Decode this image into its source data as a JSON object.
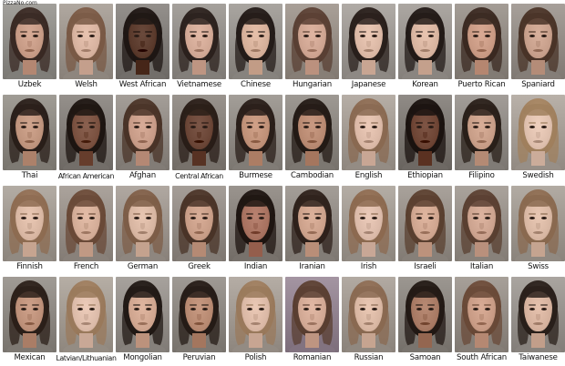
{
  "watermark": "PizzaNo.com",
  "rows": [
    [
      {
        "label": "Uzbek",
        "skin": "#c79b86",
        "hair": "#3a2a24",
        "bg": "#8c8a85"
      },
      {
        "label": "Welsh",
        "skin": "#d8b3a0",
        "hair": "#7a5a46",
        "bg": "#9a928a"
      },
      {
        "label": "West African",
        "skin": "#5a3a2c",
        "hair": "#1f1714",
        "bg": "#7e7a76"
      },
      {
        "label": "Vietnamese",
        "skin": "#d2a996",
        "hair": "#2c221e",
        "bg": "#8f8b86"
      },
      {
        "label": "Chinese",
        "skin": "#d6b09a",
        "hair": "#241c19",
        "bg": "#938f8a"
      },
      {
        "label": "Hungarian",
        "skin": "#cfa592",
        "hair": "#5a4034",
        "bg": "#938a82"
      },
      {
        "label": "Japanese",
        "skin": "#dcb9a6",
        "hair": "#2a201c",
        "bg": "#9a9590"
      },
      {
        "label": "Korean",
        "skin": "#d8b4a0",
        "hair": "#231b18",
        "bg": "#96918c"
      },
      {
        "label": "Puerto Rican",
        "skin": "#c99a84",
        "hair": "#3b2a22",
        "bg": "#8e8780"
      },
      {
        "label": "Spaniard",
        "skin": "#c8a08c",
        "hair": "#4a3428",
        "bg": "#918a84"
      }
    ],
    [
      {
        "label": "Thai",
        "skin": "#c0957e",
        "hair": "#2a1f1a",
        "bg": "#8a867f"
      },
      {
        "label": "African American",
        "skin": "#7a5140",
        "hair": "#1e1612",
        "bg": "#7f7a75"
      },
      {
        "label": "Afghan",
        "skin": "#c89c88",
        "hair": "#4a3428",
        "bg": "#8e8882"
      },
      {
        "label": "Central African",
        "skin": "#6b4637",
        "hair": "#2a1e18",
        "bg": "#837d77"
      },
      {
        "label": "Burmese",
        "skin": "#c09178",
        "hair": "#2a1f1a",
        "bg": "#8d8882"
      },
      {
        "label": "Cambodian",
        "skin": "#b98a72",
        "hair": "#241b16",
        "bg": "#88837d"
      },
      {
        "label": "English",
        "skin": "#dcbaa8",
        "hair": "#8a6a52",
        "bg": "#a09890"
      },
      {
        "label": "Ethiopian",
        "skin": "#6e4535",
        "hair": "#1b1310",
        "bg": "#7a7570"
      },
      {
        "label": "Filipino",
        "skin": "#c89e88",
        "hair": "#2a201a",
        "bg": "#8c8782"
      },
      {
        "label": "Swedish",
        "skin": "#dfc0ae",
        "hair": "#a0805e",
        "bg": "#a39b93"
      }
    ],
    [
      {
        "label": "Finnish",
        "skin": "#dab8a4",
        "hair": "#8e6c52",
        "bg": "#9d968e"
      },
      {
        "label": "French",
        "skin": "#d4ad98",
        "hair": "#6a4a38",
        "bg": "#958d86"
      },
      {
        "label": "German",
        "skin": "#d8b6a2",
        "hair": "#7e5e48",
        "bg": "#9a928b"
      },
      {
        "label": "Greek",
        "skin": "#c99e88",
        "hair": "#4a3428",
        "bg": "#8f8882"
      },
      {
        "label": "Indian",
        "skin": "#a87260",
        "hair": "#1f1612",
        "bg": "#847e78"
      },
      {
        "label": "Iranian",
        "skin": "#cda28c",
        "hair": "#2f221c",
        "bg": "#8e8882"
      },
      {
        "label": "Irish",
        "skin": "#dcbbaa",
        "hair": "#8c6a50",
        "bg": "#9e978f"
      },
      {
        "label": "Israeli",
        "skin": "#d0a690",
        "hair": "#5a4030",
        "bg": "#938c85"
      },
      {
        "label": "Italian",
        "skin": "#cda490",
        "hair": "#5a4032",
        "bg": "#948d86"
      },
      {
        "label": "Swiss",
        "skin": "#d9b8a4",
        "hair": "#8a6a50",
        "bg": "#9c958d"
      }
    ],
    [
      {
        "label": "Mexican",
        "skin": "#be917a",
        "hair": "#2c201a",
        "bg": "#8a857f"
      },
      {
        "label": "Latvian/Lithuanian",
        "skin": "#ddbcaa",
        "hair": "#9a7a5c",
        "bg": "#a0988f"
      },
      {
        "label": "Mongolian",
        "skin": "#d0a690",
        "hair": "#221a16",
        "bg": "#918c87"
      },
      {
        "label": "Peruvian",
        "skin": "#b88a72",
        "hair": "#261c17",
        "bg": "#89847e"
      },
      {
        "label": "Polish",
        "skin": "#dbb9a6",
        "hair": "#9a7a5c",
        "bg": "#9f978f"
      },
      {
        "label": "Romanian",
        "skin": "#d2a995",
        "hair": "#5a3f32",
        "bg": "#8e7f8c"
      },
      {
        "label": "Russian",
        "skin": "#dab8a4",
        "hair": "#8a6a52",
        "bg": "#9c948c"
      },
      {
        "label": "Samoan",
        "skin": "#a87a64",
        "hair": "#231a15",
        "bg": "#86817b"
      },
      {
        "label": "South African",
        "skin": "#c99c86",
        "hair": "#6a4a38",
        "bg": "#918a83"
      },
      {
        "label": "Taiwanese",
        "skin": "#d6b29e",
        "hair": "#2a201b",
        "bg": "#948f8a"
      }
    ]
  ]
}
